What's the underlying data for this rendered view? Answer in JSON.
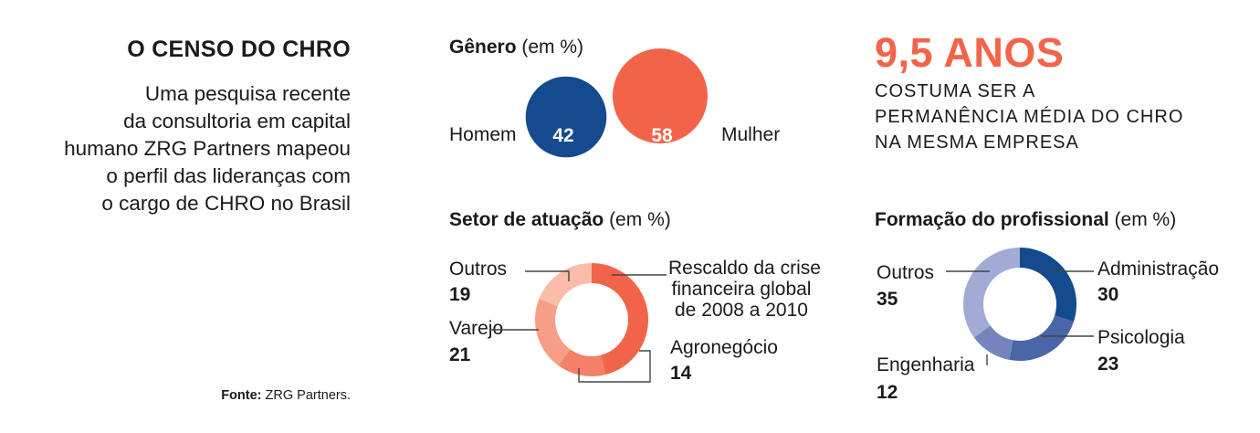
{
  "header": {
    "title": "O CENSO DO CHRO",
    "intro_lines": [
      "Uma pesquisa recente",
      "da consultoria em capital",
      "humano ZRG Partners mapeou",
      "o perfil das lideranças com",
      "o cargo de CHRO no Brasil"
    ]
  },
  "source": {
    "label": "Fonte:",
    "text": " ZRG Partners."
  },
  "tenure": {
    "value": "9,5 ANOS",
    "lines": [
      "COSTUMA SER A",
      "PERMANÊNCIA MÉDIA DO CHRO",
      "NA MESMA EMPRESA"
    ]
  },
  "chart_data": [
    {
      "type": "bubble",
      "title": "Gênero",
      "unit": " (em %)",
      "categories": [
        "Homem",
        "Mulher"
      ],
      "values": [
        42,
        58
      ],
      "colors": [
        "#134b8e",
        "#f2644a"
      ]
    },
    {
      "type": "donut",
      "title": "Setor de atuação",
      "unit": " (em %)",
      "categories": [
        "Rescaldo da crise financeira global de 2008 a 2010",
        "Agronegócio",
        "Varejo",
        "Outros"
      ],
      "label_lines": [
        [
          "Rescaldo da crise",
          "financeira global",
          "de 2008 a 2010"
        ],
        [
          "Agronegócio"
        ],
        [
          "Varejo"
        ],
        [
          "Outros"
        ]
      ],
      "values": [
        46,
        14,
        21,
        19
      ],
      "value_labels": [
        "",
        "14",
        "21",
        "19"
      ],
      "colors": [
        "#f2644a",
        "#f4806a",
        "#f69e86",
        "#f9bda9"
      ]
    },
    {
      "type": "donut",
      "title": "Formação do profissional",
      "unit": " (em %)",
      "categories": [
        "Administração",
        "Psicologia",
        "Engenharia",
        "Outros"
      ],
      "values": [
        30,
        23,
        12,
        35
      ],
      "value_labels": [
        "30",
        "23",
        "12",
        "35"
      ],
      "colors": [
        "#134b8e",
        "#4a66a8",
        "#7485bd",
        "#a2abd4"
      ]
    }
  ]
}
